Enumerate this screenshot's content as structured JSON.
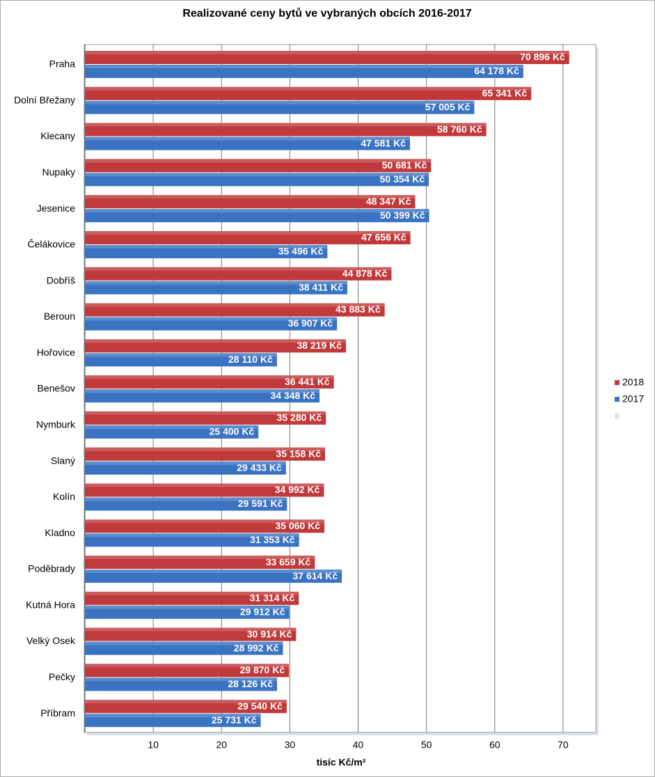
{
  "chart_data": {
    "type": "hbar",
    "title": "Realizované ceny bytů ve vybraných obcích 2016-2017",
    "x_label": "tisíc Kč/m²",
    "categories": [
      "Praha",
      "Dolní Břežany",
      "Klecany",
      "Nupaky",
      "Jesenice",
      "Čelákovice",
      "Dobříš",
      "Beroun",
      "Hořovice",
      "Benešov",
      "Nymburk",
      "Slaný",
      "Kolín",
      "Kladno",
      "Poděbrady",
      "Kutná Hora",
      "Velký Osek",
      "Pečky",
      "Příbram"
    ],
    "series": [
      {
        "name": "2018",
        "color": "#c0393b",
        "values": [
          70.896,
          65.341,
          58.76,
          50.681,
          48.347,
          47.656,
          44.878,
          43.883,
          38.219,
          36.441,
          35.28,
          35.158,
          34.992,
          35.06,
          33.659,
          31.314,
          30.914,
          29.87,
          29.54
        ],
        "value_labels": [
          "70 896 Kč",
          "65 341 Kč",
          "58 760 Kč",
          "50 681 Kč",
          "48 347 Kč",
          "47 656 Kč",
          "44 878 Kč",
          "43 883 Kč",
          "38 219 Kč",
          "36 441 Kč",
          "35 280 Kč",
          "35 158 Kč",
          "34 992 Kč",
          "35 060 Kč",
          "33 659 Kč",
          "31 314 Kč",
          "30 914 Kč",
          "29 870 Kč",
          "29 540 Kč"
        ]
      },
      {
        "name": "2017",
        "color": "#3a73c2",
        "values": [
          64.178,
          57.005,
          47.581,
          50.354,
          50.399,
          35.496,
          38.411,
          36.907,
          28.11,
          34.348,
          25.4,
          29.433,
          29.591,
          31.353,
          37.614,
          29.912,
          28.992,
          28.126,
          25.731
        ],
        "value_labels": [
          "64 178 Kč",
          "57 005 Kč",
          "47 581 Kč",
          "50 354 Kč",
          "50 399 Kč",
          "35 496 Kč",
          "38 411 Kč",
          "36 907 Kč",
          "28 110 Kč",
          "34 348 Kč",
          "25 400 Kč",
          "29 433 Kč",
          "29 591 Kč",
          "31 353 Kč",
          "37 614 Kč",
          "29 912 Kč",
          "28 992 Kč",
          "28 126 Kč",
          "25 731 Kč"
        ]
      }
    ],
    "xlim": [
      0,
      75
    ],
    "xticks": [
      10,
      20,
      30,
      40,
      50,
      60,
      70
    ],
    "grid": true,
    "legend": "right"
  }
}
